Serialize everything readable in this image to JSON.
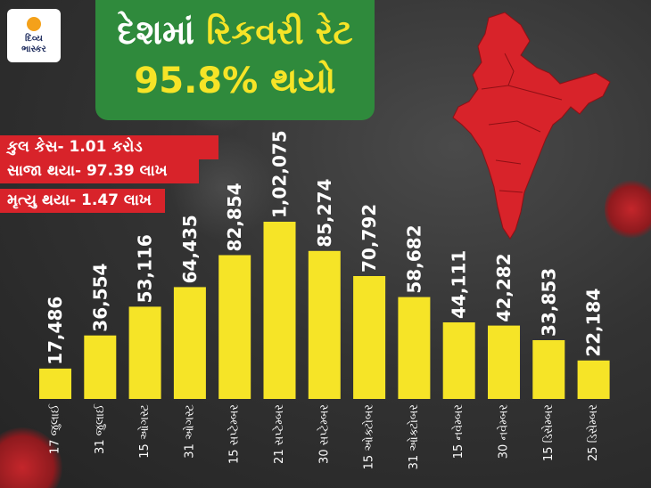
{
  "logo": {
    "line1": "દિવ્ય",
    "line2": "ભાસ્કર"
  },
  "headline": {
    "part1": "દેશમાં ",
    "part2": "રિકવરી રેટ",
    "line2": "95.8% થયો"
  },
  "stats": [
    "કુલ કેસ- 1.01 કરોડ",
    "સાજા થયા- 97.39 લાખ",
    "મૃત્યુ થયા- 1.47 લાખ"
  ],
  "colors": {
    "bar": "#f6e427",
    "headline_bg": "#2f8a3c",
    "stats_bg": "#d8232a",
    "map": "#d8232a"
  },
  "chart_data": {
    "type": "bar",
    "categories": [
      "17 જુલાઈ",
      "31 જુલાઈ",
      "15 ઓગસ્ટ",
      "31 ઓગસ્ટ",
      "15 સપ્ટેમ્બર",
      "21 સપ્ટેમ્બર",
      "30 સપ્ટેમ્બર",
      "15 ઓક્ટોબર",
      "31 ઓક્ટોબર",
      "15 નવેમ્બર",
      "30 નવેમ્બર",
      "15 ડિસેમ્બર",
      "25 ડિસેમ્બર"
    ],
    "values": [
      17486,
      36554,
      53116,
      64435,
      82854,
      102075,
      85274,
      70792,
      58682,
      44111,
      42282,
      33853,
      22184
    ],
    "value_labels": [
      "17,486",
      "36,554",
      "53,116",
      "64,435",
      "82,854",
      "1,02,075",
      "85,274",
      "70,792",
      "58,682",
      "44,111",
      "42,282",
      "33,853",
      "22,184"
    ],
    "ylim": [
      0,
      102075
    ]
  }
}
